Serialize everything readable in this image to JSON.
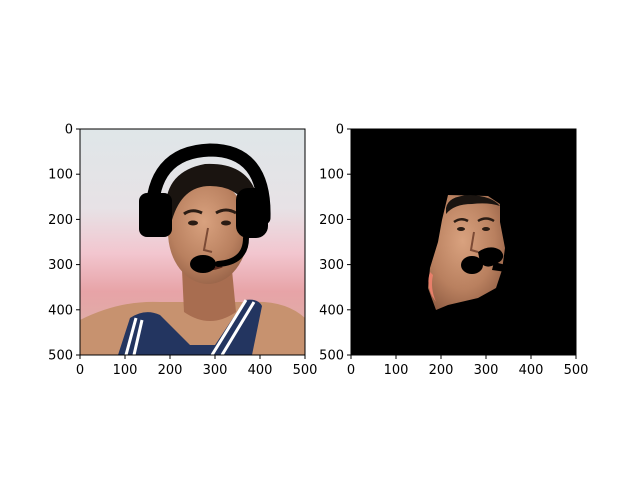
{
  "chart_data": [
    {
      "type": "image",
      "content": "photo of a man wearing a black headset",
      "xlim": [
        0,
        500
      ],
      "ylim": [
        500,
        0
      ],
      "xticks": [
        0,
        100,
        200,
        300,
        400,
        500
      ],
      "yticks": [
        0,
        100,
        200,
        300,
        400,
        500
      ],
      "xtick_labels": [
        "0",
        "100",
        "200",
        "300",
        "400",
        "500"
      ],
      "ytick_labels": [
        "0",
        "100",
        "200",
        "300",
        "400",
        "500"
      ],
      "grid": false
    },
    {
      "type": "image",
      "content": "segmentation mask output: face region visible on black background, headset removed",
      "xlim": [
        0,
        500
      ],
      "ylim": [
        500,
        0
      ],
      "xticks": [
        0,
        100,
        200,
        300,
        400,
        500
      ],
      "yticks": [
        0,
        100,
        200,
        300,
        400,
        500
      ],
      "xtick_labels": [
        "0",
        "100",
        "200",
        "300",
        "400",
        "500"
      ],
      "ytick_labels": [
        "0",
        "100",
        "200",
        "300",
        "400",
        "500"
      ],
      "grid": false
    }
  ]
}
